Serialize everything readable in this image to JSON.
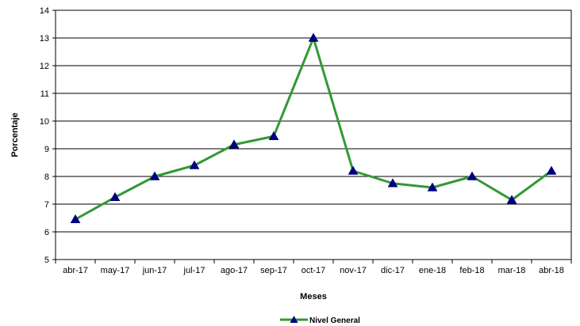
{
  "chart_data": {
    "type": "line",
    "title": "",
    "xlabel": "Meses",
    "ylabel": "Porcentaje",
    "ylim": [
      5,
      14
    ],
    "yticks": [
      5,
      6,
      7,
      8,
      9,
      10,
      11,
      12,
      13,
      14
    ],
    "grid": true,
    "legend_position": "bottom",
    "categories": [
      "abr-17",
      "may-17",
      "jun-17",
      "jul-17",
      "ago-17",
      "sep-17",
      "oct-17",
      "nov-17",
      "dic-17",
      "ene-18",
      "feb-18",
      "mar-18",
      "abr-18"
    ],
    "series": [
      {
        "name": "Nivel General",
        "values": [
          6.45,
          7.25,
          8.0,
          8.4,
          9.15,
          9.45,
          13.0,
          8.2,
          7.75,
          7.6,
          8.0,
          7.15,
          8.2
        ],
        "line_color": "#339933",
        "marker_color": "#000080",
        "marker": "triangle"
      }
    ]
  }
}
